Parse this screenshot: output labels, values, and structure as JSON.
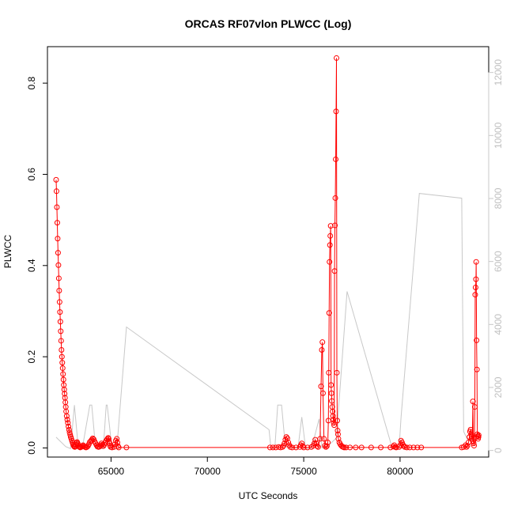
{
  "chart_data": {
    "type": "line",
    "title": "ORCAS RF07vlon PLWCC (Log)",
    "xlabel": "UTC Seconds",
    "ylabel": "PLWCC",
    "xlim": [
      61700,
      84600
    ],
    "ylim": [
      -0.02,
      0.88
    ],
    "y2lim": [
      -210,
      12820
    ],
    "x_ticks": [
      65000,
      70000,
      75000,
      80000
    ],
    "y_ticks": [
      0.0,
      0.2,
      0.4,
      0.6,
      0.8
    ],
    "y2_ticks": [
      0,
      2000,
      4000,
      6000,
      8000,
      10000,
      12000
    ],
    "x_tick_labels": [
      "65000",
      "70000",
      "75000",
      "80000"
    ],
    "y_tick_labels": [
      "0.0",
      "0.2",
      "0.4",
      "0.6",
      "0.8"
    ],
    "y2_tick_labels": [
      "0",
      "2000",
      "4000",
      "6000",
      "8000",
      "10000",
      "12000"
    ],
    "grid": false,
    "legend": "none",
    "series": [
      {
        "axis": "left",
        "color": "#ff0000",
        "marker": "open-circle",
        "points": [
          [
            62150,
            0.588
          ],
          [
            62170,
            0.563
          ],
          [
            62190,
            0.528
          ],
          [
            62210,
            0.494
          ],
          [
            62230,
            0.459
          ],
          [
            62250,
            0.428
          ],
          [
            62270,
            0.401
          ],
          [
            62290,
            0.372
          ],
          [
            62310,
            0.345
          ],
          [
            62330,
            0.32
          ],
          [
            62350,
            0.298
          ],
          [
            62370,
            0.277
          ],
          [
            62390,
            0.256
          ],
          [
            62410,
            0.235
          ],
          [
            62430,
            0.215
          ],
          [
            62450,
            0.2
          ],
          [
            62470,
            0.187
          ],
          [
            62490,
            0.175
          ],
          [
            62510,
            0.162
          ],
          [
            62530,
            0.15
          ],
          [
            62550,
            0.138
          ],
          [
            62570,
            0.128
          ],
          [
            62590,
            0.119
          ],
          [
            62610,
            0.11
          ],
          [
            62630,
            0.1
          ],
          [
            62650,
            0.09
          ],
          [
            62670,
            0.08
          ],
          [
            62700,
            0.07
          ],
          [
            62730,
            0.062
          ],
          [
            62760,
            0.055
          ],
          [
            62790,
            0.047
          ],
          [
            62820,
            0.04
          ],
          [
            62850,
            0.034
          ],
          [
            62880,
            0.029
          ],
          [
            62910,
            0.024
          ],
          [
            62940,
            0.02
          ],
          [
            62970,
            0.016
          ],
          [
            63000,
            0.012
          ],
          [
            63030,
            0.008
          ],
          [
            63060,
            0.005
          ],
          [
            63090,
            0.003
          ],
          [
            63120,
            0.002
          ],
          [
            63150,
            0.004
          ],
          [
            63180,
            0.007
          ],
          [
            63210,
            0.011
          ],
          [
            63240,
            0.013
          ],
          [
            63270,
            0.01
          ],
          [
            63300,
            0.006
          ],
          [
            63330,
            0.003
          ],
          [
            63360,
            0.002
          ],
          [
            63400,
            0.001
          ],
          [
            63450,
            0.002
          ],
          [
            63500,
            0.004
          ],
          [
            63550,
            0.006
          ],
          [
            63600,
            0.004
          ],
          [
            63650,
            0.002
          ],
          [
            63700,
            0.001
          ],
          [
            63750,
            0.002
          ],
          [
            63800,
            0.004
          ],
          [
            63850,
            0.008
          ],
          [
            63900,
            0.013
          ],
          [
            63950,
            0.015
          ],
          [
            64000,
            0.018
          ],
          [
            64050,
            0.021
          ],
          [
            64100,
            0.019
          ],
          [
            64150,
            0.014
          ],
          [
            64200,
            0.01
          ],
          [
            64250,
            0.006
          ],
          [
            64300,
            0.003
          ],
          [
            64350,
            0.002
          ],
          [
            64400,
            0.003
          ],
          [
            64450,
            0.006
          ],
          [
            64500,
            0.01
          ],
          [
            64550,
            0.007
          ],
          [
            64600,
            0.004
          ],
          [
            64650,
            0.007
          ],
          [
            64700,
            0.012
          ],
          [
            64750,
            0.016
          ],
          [
            64800,
            0.019
          ],
          [
            64850,
            0.022
          ],
          [
            64880,
            0.02
          ],
          [
            64900,
            0.014
          ],
          [
            64920,
            0.01
          ],
          [
            64950,
            0.005
          ],
          [
            64980,
            0.002
          ],
          [
            65050,
            0.001
          ],
          [
            65150,
            0.002
          ],
          [
            65200,
            0.008
          ],
          [
            65250,
            0.016
          ],
          [
            65300,
            0.02
          ],
          [
            65330,
            0.012
          ],
          [
            65360,
            0.004
          ],
          [
            65400,
            0.001
          ],
          [
            65800,
            0.001
          ],
          [
            73250,
            0.001
          ],
          [
            73400,
            0.001
          ],
          [
            73550,
            0.001
          ],
          [
            73700,
            0.002
          ],
          [
            73800,
            0.001
          ],
          [
            73900,
            0.002
          ],
          [
            73950,
            0.005
          ],
          [
            74000,
            0.01
          ],
          [
            74050,
            0.018
          ],
          [
            74100,
            0.024
          ],
          [
            74150,
            0.021
          ],
          [
            74200,
            0.012
          ],
          [
            74250,
            0.006
          ],
          [
            74300,
            0.002
          ],
          [
            74400,
            0.001
          ],
          [
            74600,
            0.001
          ],
          [
            74800,
            0.002
          ],
          [
            74850,
            0.006
          ],
          [
            74900,
            0.01
          ],
          [
            74950,
            0.004
          ],
          [
            75000,
            0.001
          ],
          [
            75200,
            0.001
          ],
          [
            75400,
            0.002
          ],
          [
            75500,
            0.005
          ],
          [
            75550,
            0.01
          ],
          [
            75600,
            0.018
          ],
          [
            75650,
            0.01
          ],
          [
            75700,
            0.004
          ],
          [
            75750,
            0.002
          ],
          [
            75850,
            0.02
          ],
          [
            75900,
            0.135
          ],
          [
            75940,
            0.215
          ],
          [
            75970,
            0.232
          ],
          [
            76000,
            0.12
          ],
          [
            76050,
            0.02
          ],
          [
            76100,
            0.005
          ],
          [
            76150,
            0.002
          ],
          [
            76200,
            0.004
          ],
          [
            76250,
            0.012
          ],
          [
            76280,
            0.06
          ],
          [
            76300,
            0.165
          ],
          [
            76320,
            0.296
          ],
          [
            76340,
            0.408
          ],
          [
            76360,
            0.445
          ],
          [
            76380,
            0.465
          ],
          [
            76400,
            0.487
          ],
          [
            76420,
            0.138
          ],
          [
            76440,
            0.12
          ],
          [
            76460,
            0.103
          ],
          [
            76480,
            0.09
          ],
          [
            76500,
            0.08
          ],
          [
            76520,
            0.07
          ],
          [
            76540,
            0.062
          ],
          [
            76560,
            0.055
          ],
          [
            76580,
            0.05
          ],
          [
            76600,
            0.388
          ],
          [
            76620,
            0.488
          ],
          [
            76640,
            0.548
          ],
          [
            76660,
            0.633
          ],
          [
            76680,
            0.738
          ],
          [
            76700,
            0.855
          ],
          [
            76720,
            0.165
          ],
          [
            76740,
            0.06
          ],
          [
            76760,
            0.038
          ],
          [
            76780,
            0.03
          ],
          [
            76800,
            0.02
          ],
          [
            76850,
            0.012
          ],
          [
            76900,
            0.008
          ],
          [
            76950,
            0.005
          ],
          [
            77000,
            0.003
          ],
          [
            77050,
            0.002
          ],
          [
            77100,
            0.001
          ],
          [
            77200,
            0.001
          ],
          [
            77400,
            0.001
          ],
          [
            77700,
            0.001
          ],
          [
            78000,
            0.001
          ],
          [
            78500,
            0.001
          ],
          [
            79000,
            0.001
          ],
          [
            79500,
            0.001
          ],
          [
            79650,
            0.003
          ],
          [
            79700,
            0.006
          ],
          [
            79750,
            0.002
          ],
          [
            79800,
            0.001
          ],
          [
            79950,
            0.002
          ],
          [
            80000,
            0.006
          ],
          [
            80050,
            0.016
          ],
          [
            80100,
            0.012
          ],
          [
            80150,
            0.007
          ],
          [
            80200,
            0.004
          ],
          [
            80250,
            0.002
          ],
          [
            80350,
            0.001
          ],
          [
            80500,
            0.001
          ],
          [
            80700,
            0.001
          ],
          [
            80900,
            0.001
          ],
          [
            81100,
            0.001
          ],
          [
            83200,
            0.001
          ],
          [
            83300,
            0.002
          ],
          [
            83400,
            0.006
          ],
          [
            83450,
            0.002
          ],
          [
            83500,
            0.005
          ],
          [
            83550,
            0.012
          ],
          [
            83600,
            0.024
          ],
          [
            83630,
            0.036
          ],
          [
            83660,
            0.04
          ],
          [
            83690,
            0.03
          ],
          [
            83720,
            0.025
          ],
          [
            83750,
            0.02
          ],
          [
            83780,
            0.102
          ],
          [
            83800,
            0.015
          ],
          [
            83820,
            0.01
          ],
          [
            83840,
            0.005
          ],
          [
            83860,
            0.02
          ],
          [
            83880,
            0.09
          ],
          [
            83900,
            0.336
          ],
          [
            83920,
            0.352
          ],
          [
            83940,
            0.37
          ],
          [
            83950,
            0.408
          ],
          [
            83970,
            0.236
          ],
          [
            83990,
            0.172
          ],
          [
            84010,
            0.03
          ],
          [
            84030,
            0.026
          ],
          [
            84050,
            0.02
          ],
          [
            84070,
            0.024
          ],
          [
            84080,
            0.028
          ]
        ]
      },
      {
        "axis": "right",
        "color": "#c8c8c8",
        "marker": "none",
        "points": [
          [
            62150,
            420
          ],
          [
            62650,
            120
          ],
          [
            62900,
            60
          ],
          [
            63100,
            1440
          ],
          [
            63300,
            80
          ],
          [
            63500,
            40
          ],
          [
            63900,
            1440
          ],
          [
            64000,
            1440
          ],
          [
            64200,
            60
          ],
          [
            64600,
            60
          ],
          [
            64750,
            1440
          ],
          [
            64800,
            1440
          ],
          [
            65050,
            60
          ],
          [
            65300,
            60
          ],
          [
            65800,
            3920
          ],
          [
            73200,
            660
          ],
          [
            73300,
            60
          ],
          [
            73500,
            60
          ],
          [
            73650,
            1440
          ],
          [
            73850,
            1440
          ],
          [
            74050,
            110
          ],
          [
            74300,
            110
          ],
          [
            74700,
            60
          ],
          [
            74900,
            1060
          ],
          [
            75100,
            60
          ],
          [
            75400,
            60
          ],
          [
            75800,
            1000
          ],
          [
            75950,
            80
          ],
          [
            76150,
            80
          ],
          [
            76700,
            400
          ],
          [
            77250,
            5050
          ],
          [
            79600,
            60
          ],
          [
            79950,
            60
          ],
          [
            80050,
            1040
          ],
          [
            81000,
            8160
          ],
          [
            83200,
            8010
          ],
          [
            83300,
            600
          ],
          [
            83500,
            350
          ],
          [
            83700,
            350
          ],
          [
            83900,
            350
          ],
          [
            84000,
            450
          ],
          [
            84080,
            450
          ]
        ]
      }
    ]
  }
}
